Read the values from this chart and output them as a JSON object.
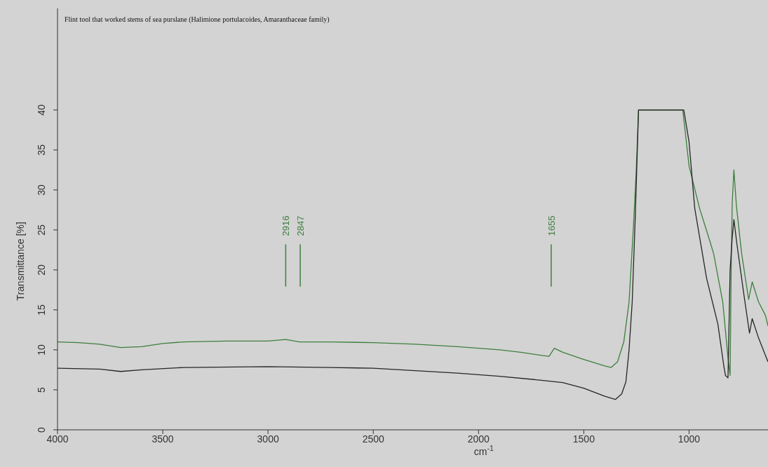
{
  "chart_data": {
    "type": "line",
    "title": "Flint tool that worked stems of sea purslane (Halimione portulacoides, Amaranthaceae family)",
    "xlabel": "cm$^{-1}$",
    "ylabel": "Transmittance [%]",
    "xlim": [
      4000,
      625
    ],
    "xticks": [
      4000,
      3500,
      3000,
      2500,
      2000,
      1500,
      1000
    ],
    "ylim": [
      0,
      52.7
    ],
    "yticks": [
      0,
      5,
      10,
      15,
      20,
      25,
      30,
      35,
      40
    ],
    "grid": false,
    "legend": false,
    "marker": "none",
    "line_style": "solid",
    "series": [
      {
        "color": "#3d7f3d",
        "x": [
          4000,
          3900,
          3800,
          3700,
          3600,
          3500,
          3400,
          3200,
          3000,
          2916,
          2850,
          2700,
          2500,
          2300,
          2100,
          1900,
          1800,
          1700,
          1665,
          1640,
          1600,
          1500,
          1400,
          1370,
          1340,
          1310,
          1285,
          1265,
          1250,
          1240,
          1030,
          1000,
          950,
          900,
          883,
          840,
          815,
          805,
          800,
          795,
          787,
          775,
          750,
          717,
          700,
          670,
          637,
          625
        ],
        "values": [
          11,
          10.9,
          10.7,
          10.3,
          10.4,
          10.8,
          11,
          11.1,
          11.1,
          11.3,
          11,
          11,
          10.9,
          10.7,
          10.4,
          10,
          9.7,
          9.3,
          9.2,
          10.2,
          9.7,
          8.8,
          8,
          7.8,
          8.5,
          11,
          16,
          25,
          33,
          40,
          40,
          33,
          27.7,
          23.5,
          22,
          16,
          9,
          6.8,
          20,
          28.3,
          32.5,
          28,
          22,
          16.3,
          18.5,
          16,
          14.3,
          13
        ]
      },
      {
        "color": "#262626",
        "x": [
          4000,
          3800,
          3700,
          3600,
          3400,
          3000,
          2700,
          2500,
          2300,
          2100,
          1900,
          1700,
          1600,
          1500,
          1450,
          1400,
          1350,
          1320,
          1300,
          1285,
          1270,
          1255,
          1240,
          1025,
          1000,
          973,
          917,
          863,
          835,
          827,
          815,
          805,
          795,
          787,
          773,
          740,
          713,
          700,
          670,
          637,
          625
        ],
        "values": [
          7.7,
          7.6,
          7.3,
          7.5,
          7.8,
          7.9,
          7.8,
          7.7,
          7.4,
          7.1,
          6.7,
          6.2,
          5.9,
          5.2,
          4.7,
          4.2,
          3.8,
          4.5,
          6,
          10,
          16,
          27,
          40,
          40,
          36,
          27.7,
          19,
          13.2,
          8,
          6.8,
          6.5,
          20,
          24,
          26.3,
          23.3,
          17,
          12.1,
          13.9,
          11.5,
          9.3,
          8.5
        ]
      }
    ],
    "ref_lines": [
      {
        "axis": "x",
        "value": 2916,
        "label": "2916",
        "color": "#3d7f3d"
      },
      {
        "axis": "x",
        "value": 2847,
        "label": "2847",
        "color": "#3d7f3d"
      },
      {
        "axis": "x",
        "value": 1655,
        "label": "1655",
        "color": "#3d7f3d"
      }
    ]
  }
}
